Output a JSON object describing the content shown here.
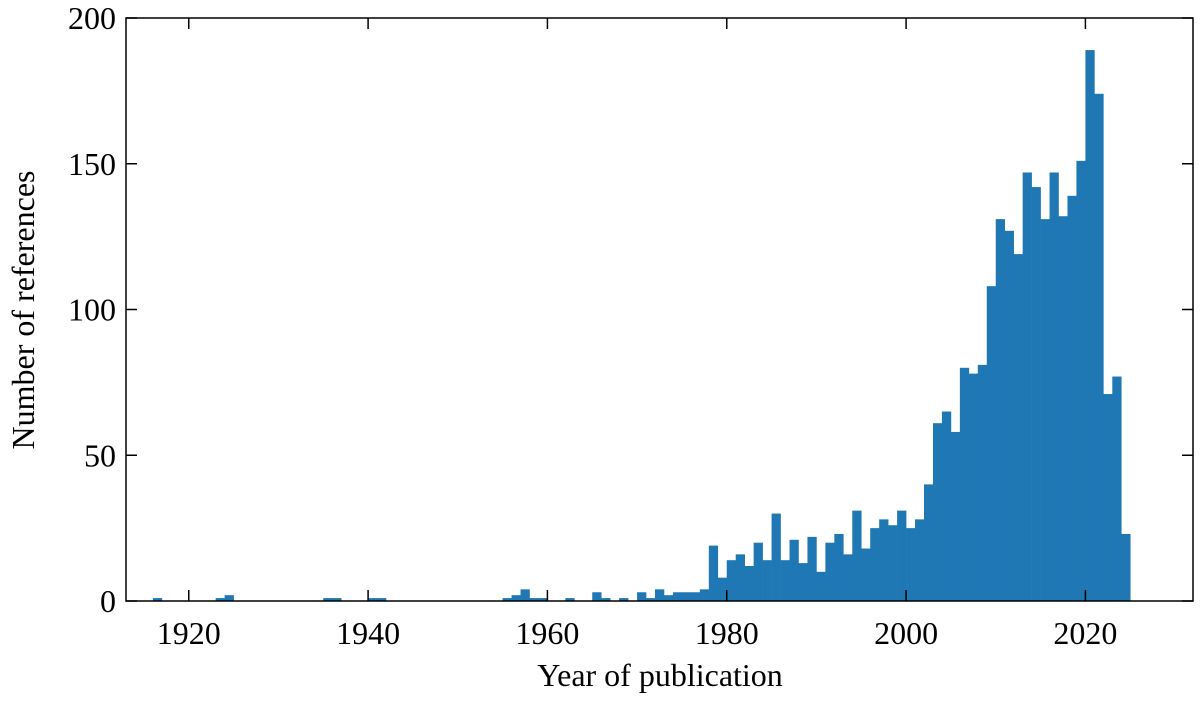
{
  "chart_data": {
    "type": "histogram",
    "xlabel": "Year of publication",
    "ylabel": "Number of references",
    "color": "#1f77b4",
    "bins": [
      1916,
      1917,
      1918,
      1919,
      1920,
      1921,
      1922,
      1923,
      1924,
      1925,
      1926,
      1927,
      1928,
      1929,
      1930,
      1931,
      1932,
      1933,
      1934,
      1935,
      1936,
      1937,
      1938,
      1939,
      1940,
      1941,
      1942,
      1943,
      1944,
      1945,
      1946,
      1947,
      1948,
      1949,
      1950,
      1951,
      1952,
      1953,
      1954,
      1955,
      1956,
      1957,
      1958,
      1959,
      1960,
      1961,
      1962,
      1963,
      1964,
      1965,
      1966,
      1967,
      1968,
      1969,
      1970,
      1971,
      1972,
      1973,
      1974,
      1975,
      1976,
      1977,
      1978,
      1979,
      1980,
      1981,
      1982,
      1983,
      1984,
      1985,
      1986,
      1987,
      1988,
      1989,
      1990,
      1991,
      1992,
      1993,
      1994,
      1995,
      1996,
      1997,
      1998,
      1999,
      2000,
      2001,
      2002,
      2003,
      2004,
      2005,
      2006,
      2007,
      2008,
      2009,
      2010,
      2011,
      2012,
      2013,
      2014,
      2015,
      2016,
      2017,
      2018,
      2019,
      2020,
      2021,
      2022,
      2023,
      2024,
      2025
    ],
    "values": [
      1,
      0,
      0,
      0,
      0,
      0,
      0,
      1,
      2,
      0,
      0,
      0,
      0,
      0,
      0,
      0,
      0,
      0,
      0,
      1,
      1,
      0,
      0,
      0,
      1,
      1,
      0,
      0,
      0,
      0,
      0,
      0,
      0,
      0,
      0,
      0,
      0,
      0,
      0,
      1,
      2,
      4,
      1,
      1,
      0,
      0,
      1,
      0,
      0,
      3,
      1,
      0,
      1,
      0,
      3,
      1,
      4,
      2,
      3,
      3,
      3,
      4,
      19,
      8,
      14,
      16,
      12,
      20,
      14,
      30,
      14,
      21,
      13,
      22,
      10,
      20,
      23,
      16,
      31,
      18,
      25,
      28,
      26,
      31,
      25,
      28,
      40,
      61,
      65,
      58,
      80,
      78,
      81,
      108,
      131,
      127,
      119,
      147,
      142,
      131,
      147,
      132,
      139,
      151,
      189,
      174,
      71,
      77,
      23
    ],
    "xlim": [
      1913,
      2032
    ],
    "ylim": [
      0,
      200
    ],
    "xticks": [
      1920,
      1940,
      1960,
      1980,
      2000,
      2020
    ],
    "yticks": [
      0,
      50,
      100,
      150,
      200
    ]
  }
}
